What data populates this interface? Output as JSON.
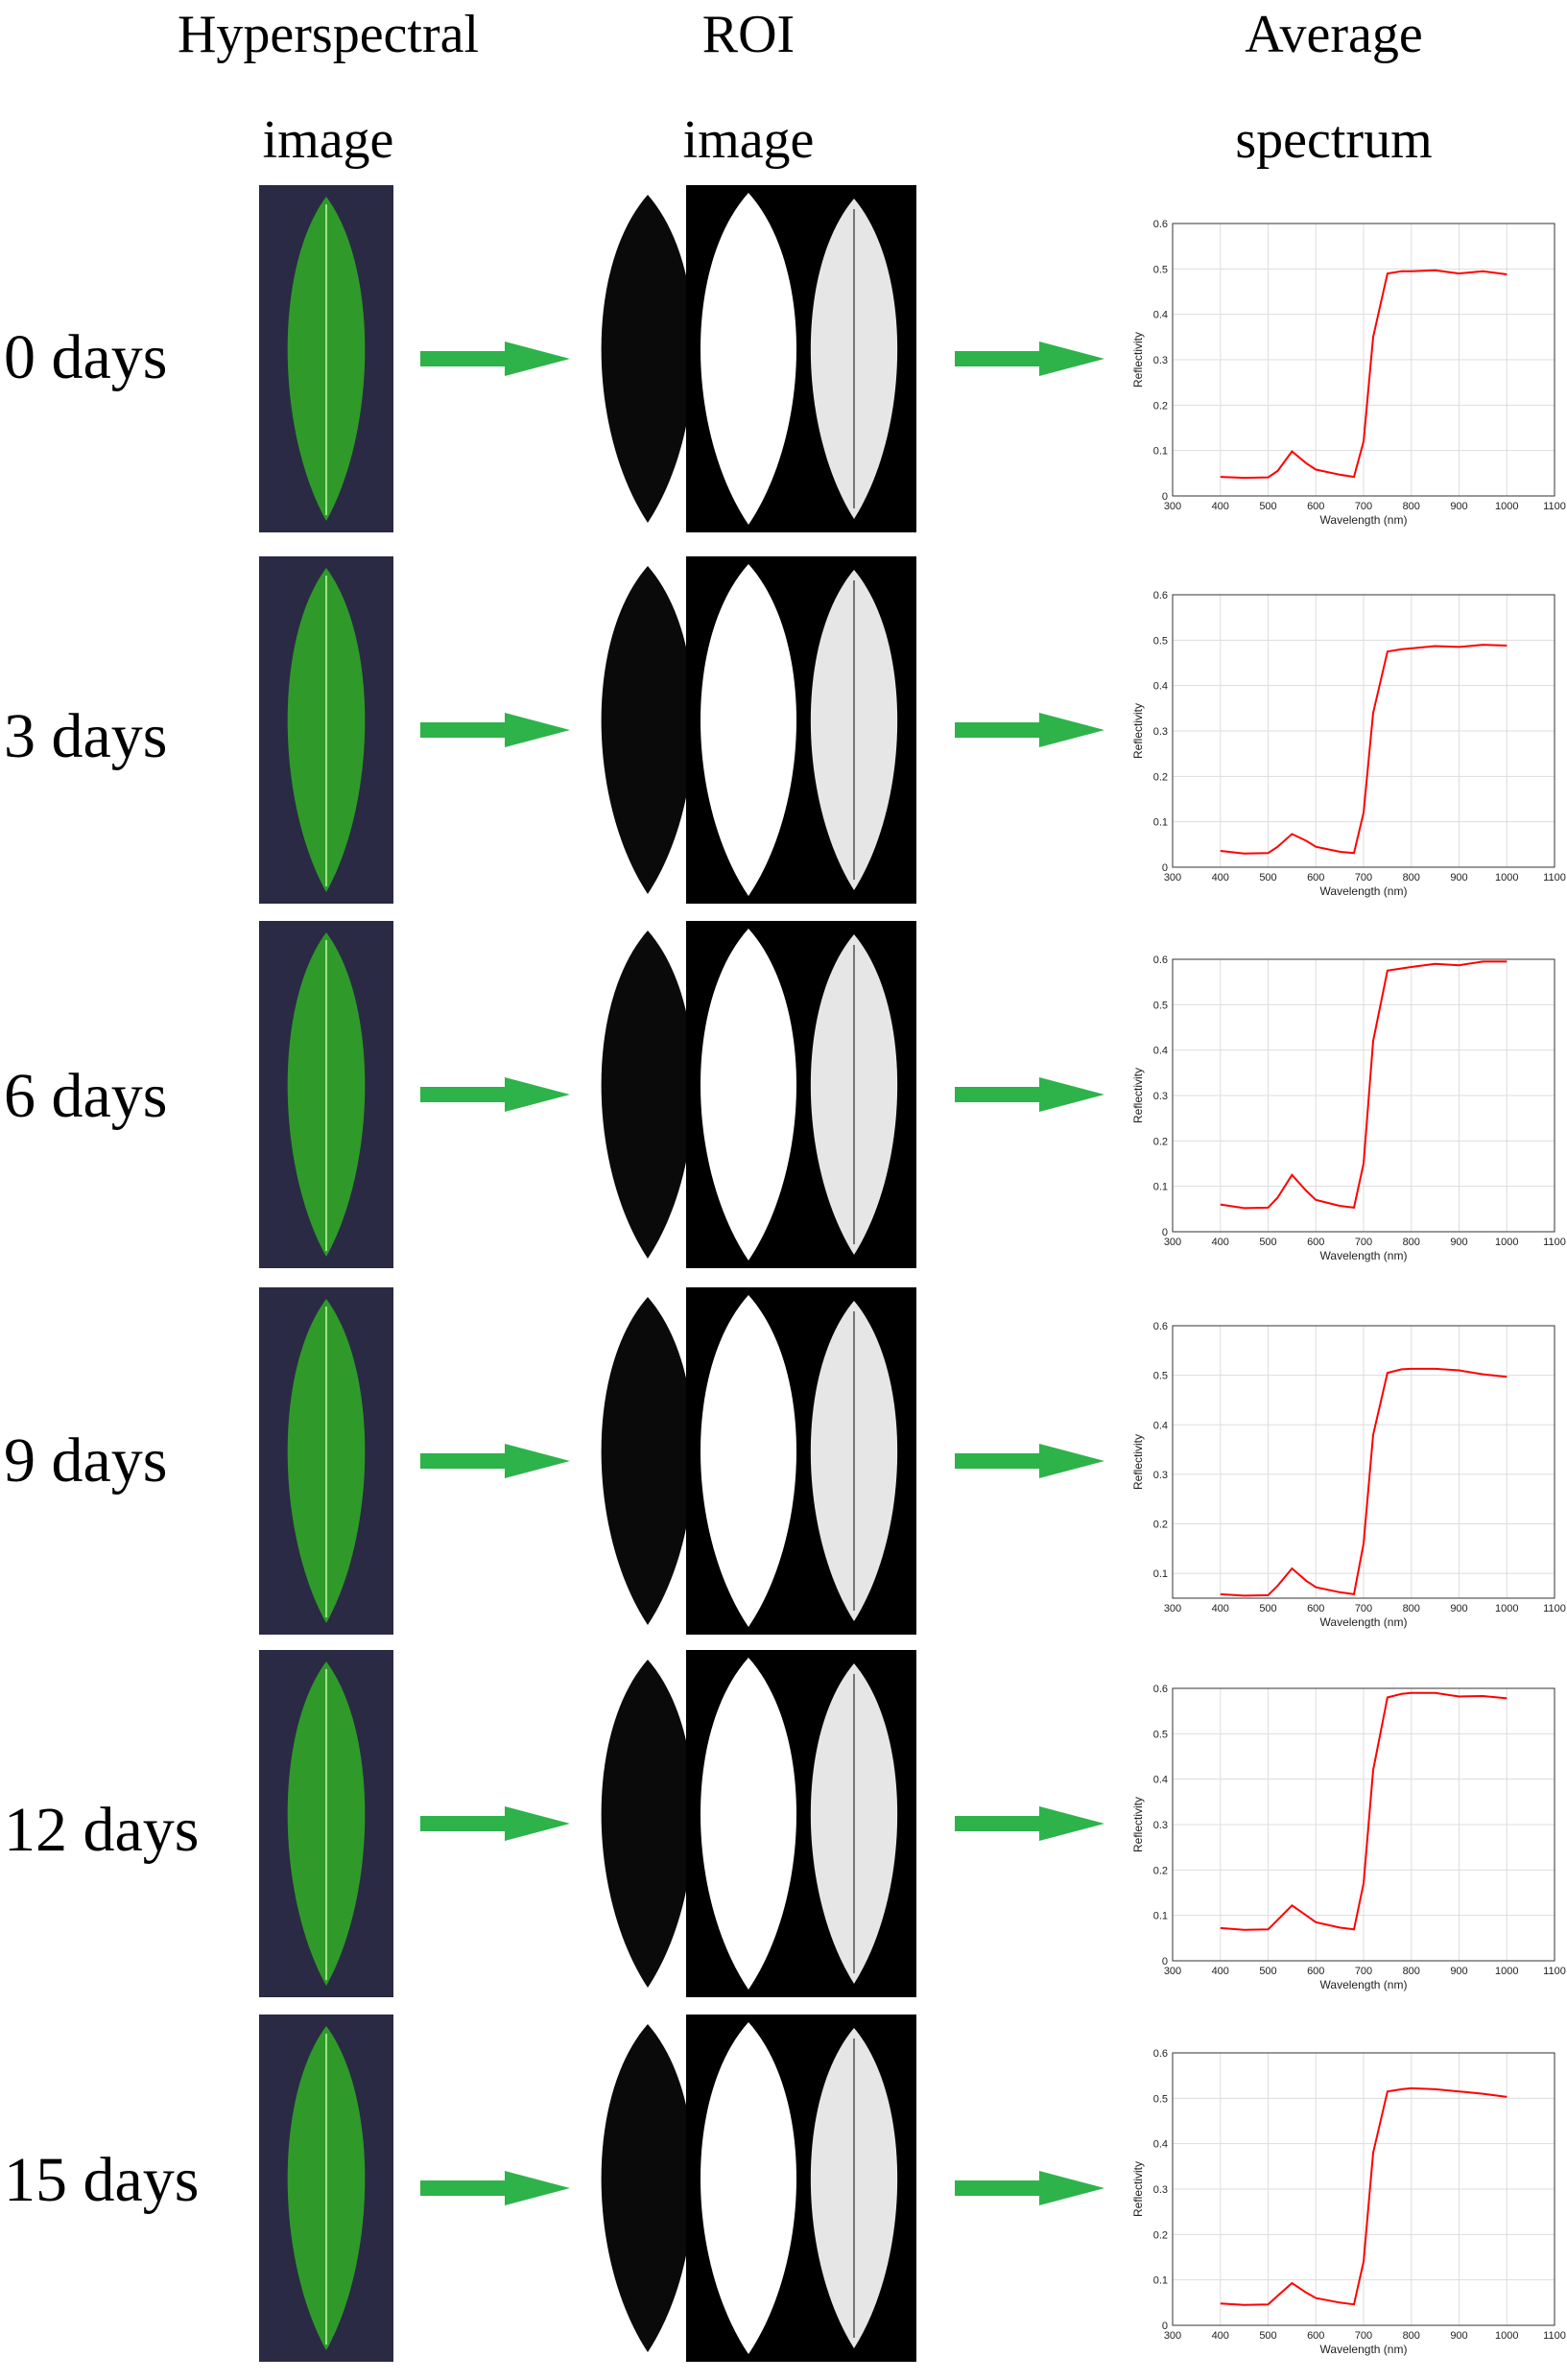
{
  "headers": {
    "col1": [
      "Hyperspectral",
      "image"
    ],
    "col2": [
      "ROI",
      "image"
    ],
    "col3": [
      "Average",
      "spectrum"
    ]
  },
  "colors": {
    "arrow": "#2db34a",
    "leaf": "#2f9a2a",
    "leaf_bg": "#2a2a44",
    "curve": "#ff0000"
  },
  "rows": [
    {
      "label": "0 days"
    },
    {
      "label": "3 days"
    },
    {
      "label": "6 days"
    },
    {
      "label": "9 days"
    },
    {
      "label": "12 days"
    },
    {
      "label": "15 days"
    }
  ],
  "chart_data": [
    {
      "type": "line",
      "xlabel": "Wavelength (nm)",
      "ylabel": "Reflectivity",
      "xlim": [
        300,
        1100
      ],
      "ylim": [
        0,
        0.6
      ],
      "xticks": [
        "300",
        "400",
        "500",
        "600",
        "700",
        "800",
        "900",
        "1000",
        "1100"
      ],
      "yticks": [
        "0",
        "0.1",
        "0.2",
        "0.3",
        "0.4",
        "0.5",
        "0.6"
      ],
      "grid": true,
      "series": [
        {
          "x": [
            400,
            450,
            500,
            520,
            550,
            580,
            600,
            650,
            680,
            700,
            720,
            750,
            780,
            800,
            850,
            900,
            950,
            1000
          ],
          "y": [
            0.042,
            0.04,
            0.041,
            0.055,
            0.098,
            0.072,
            0.058,
            0.047,
            0.042,
            0.12,
            0.35,
            0.49,
            0.495,
            0.495,
            0.497,
            0.49,
            0.495,
            0.488
          ]
        }
      ]
    },
    {
      "type": "line",
      "xlabel": "Wavelength (nm)",
      "ylabel": "Reflectivity",
      "xlim": [
        300,
        1100
      ],
      "ylim": [
        0,
        0.6
      ],
      "xticks": [
        "300",
        "400",
        "500",
        "600",
        "700",
        "800",
        "900",
        "1000",
        "1100"
      ],
      "yticks": [
        "0",
        "0.1",
        "0.2",
        "0.3",
        "0.4",
        "0.5",
        "0.6"
      ],
      "grid": true,
      "series": [
        {
          "x": [
            400,
            450,
            500,
            520,
            550,
            580,
            600,
            650,
            680,
            700,
            720,
            750,
            780,
            800,
            850,
            900,
            950,
            1000
          ],
          "y": [
            0.036,
            0.03,
            0.031,
            0.045,
            0.073,
            0.058,
            0.045,
            0.034,
            0.031,
            0.12,
            0.34,
            0.475,
            0.48,
            0.482,
            0.487,
            0.485,
            0.49,
            0.488
          ]
        }
      ]
    },
    {
      "type": "line",
      "xlabel": "Wavelength (nm)",
      "ylabel": "Reflectivity",
      "xlim": [
        300,
        1100
      ],
      "ylim": [
        0,
        0.6
      ],
      "xticks": [
        "300",
        "400",
        "500",
        "600",
        "700",
        "800",
        "900",
        "1000",
        "1100"
      ],
      "yticks": [
        "0",
        "0.1",
        "0.2",
        "0.3",
        "0.4",
        "0.5",
        "0.6"
      ],
      "grid": true,
      "series": [
        {
          "x": [
            400,
            450,
            500,
            520,
            550,
            580,
            600,
            650,
            680,
            700,
            720,
            750,
            780,
            800,
            850,
            900,
            950,
            1000
          ],
          "y": [
            0.06,
            0.052,
            0.053,
            0.075,
            0.125,
            0.09,
            0.07,
            0.057,
            0.053,
            0.15,
            0.42,
            0.575,
            0.58,
            0.583,
            0.59,
            0.587,
            0.595,
            0.595
          ]
        }
      ]
    },
    {
      "type": "line",
      "xlabel": "Wavelength (nm)",
      "ylabel": "Reflectivity",
      "xlim": [
        300,
        1100
      ],
      "ylim": [
        0.05,
        0.6
      ],
      "xticks": [
        "300",
        "400",
        "500",
        "600",
        "700",
        "800",
        "900",
        "1000",
        "1100"
      ],
      "yticks": [
        "0.1",
        "0.2",
        "0.3",
        "0.4",
        "0.5",
        "0.6"
      ],
      "grid": true,
      "series": [
        {
          "x": [
            400,
            450,
            500,
            520,
            550,
            580,
            600,
            650,
            680,
            700,
            720,
            750,
            780,
            800,
            850,
            900,
            950,
            1000
          ],
          "y": [
            0.058,
            0.055,
            0.056,
            0.075,
            0.11,
            0.085,
            0.072,
            0.062,
            0.058,
            0.16,
            0.38,
            0.505,
            0.512,
            0.513,
            0.513,
            0.51,
            0.502,
            0.497
          ]
        }
      ]
    },
    {
      "type": "line",
      "xlabel": "Wavelength (nm)",
      "ylabel": "Reflectivity",
      "xlim": [
        300,
        1100
      ],
      "ylim": [
        0,
        0.6
      ],
      "xticks": [
        "300",
        "400",
        "500",
        "600",
        "700",
        "800",
        "900",
        "1000",
        "1100"
      ],
      "yticks": [
        "0",
        "0.1",
        "0.2",
        "0.3",
        "0.4",
        "0.5",
        "0.6"
      ],
      "grid": true,
      "series": [
        {
          "x": [
            400,
            450,
            500,
            520,
            550,
            580,
            600,
            650,
            680,
            700,
            720,
            750,
            780,
            800,
            850,
            900,
            950,
            1000
          ],
          "y": [
            0.072,
            0.068,
            0.069,
            0.09,
            0.122,
            0.1,
            0.085,
            0.073,
            0.069,
            0.17,
            0.42,
            0.58,
            0.588,
            0.59,
            0.59,
            0.582,
            0.583,
            0.578
          ]
        }
      ]
    },
    {
      "type": "line",
      "xlabel": "Wavelength (nm)",
      "ylabel": "Reflectivity",
      "xlim": [
        300,
        1100
      ],
      "ylim": [
        0,
        0.6
      ],
      "xticks": [
        "300",
        "400",
        "500",
        "600",
        "700",
        "800",
        "900",
        "1000",
        "1100"
      ],
      "yticks": [
        "0",
        "0.1",
        "0.2",
        "0.3",
        "0.4",
        "0.5",
        "0.6"
      ],
      "grid": true,
      "series": [
        {
          "x": [
            400,
            450,
            500,
            520,
            550,
            580,
            600,
            650,
            680,
            700,
            720,
            750,
            780,
            800,
            850,
            900,
            950,
            1000
          ],
          "y": [
            0.048,
            0.045,
            0.046,
            0.065,
            0.093,
            0.072,
            0.06,
            0.05,
            0.046,
            0.14,
            0.38,
            0.515,
            0.52,
            0.522,
            0.52,
            0.515,
            0.51,
            0.503
          ]
        }
      ]
    }
  ]
}
